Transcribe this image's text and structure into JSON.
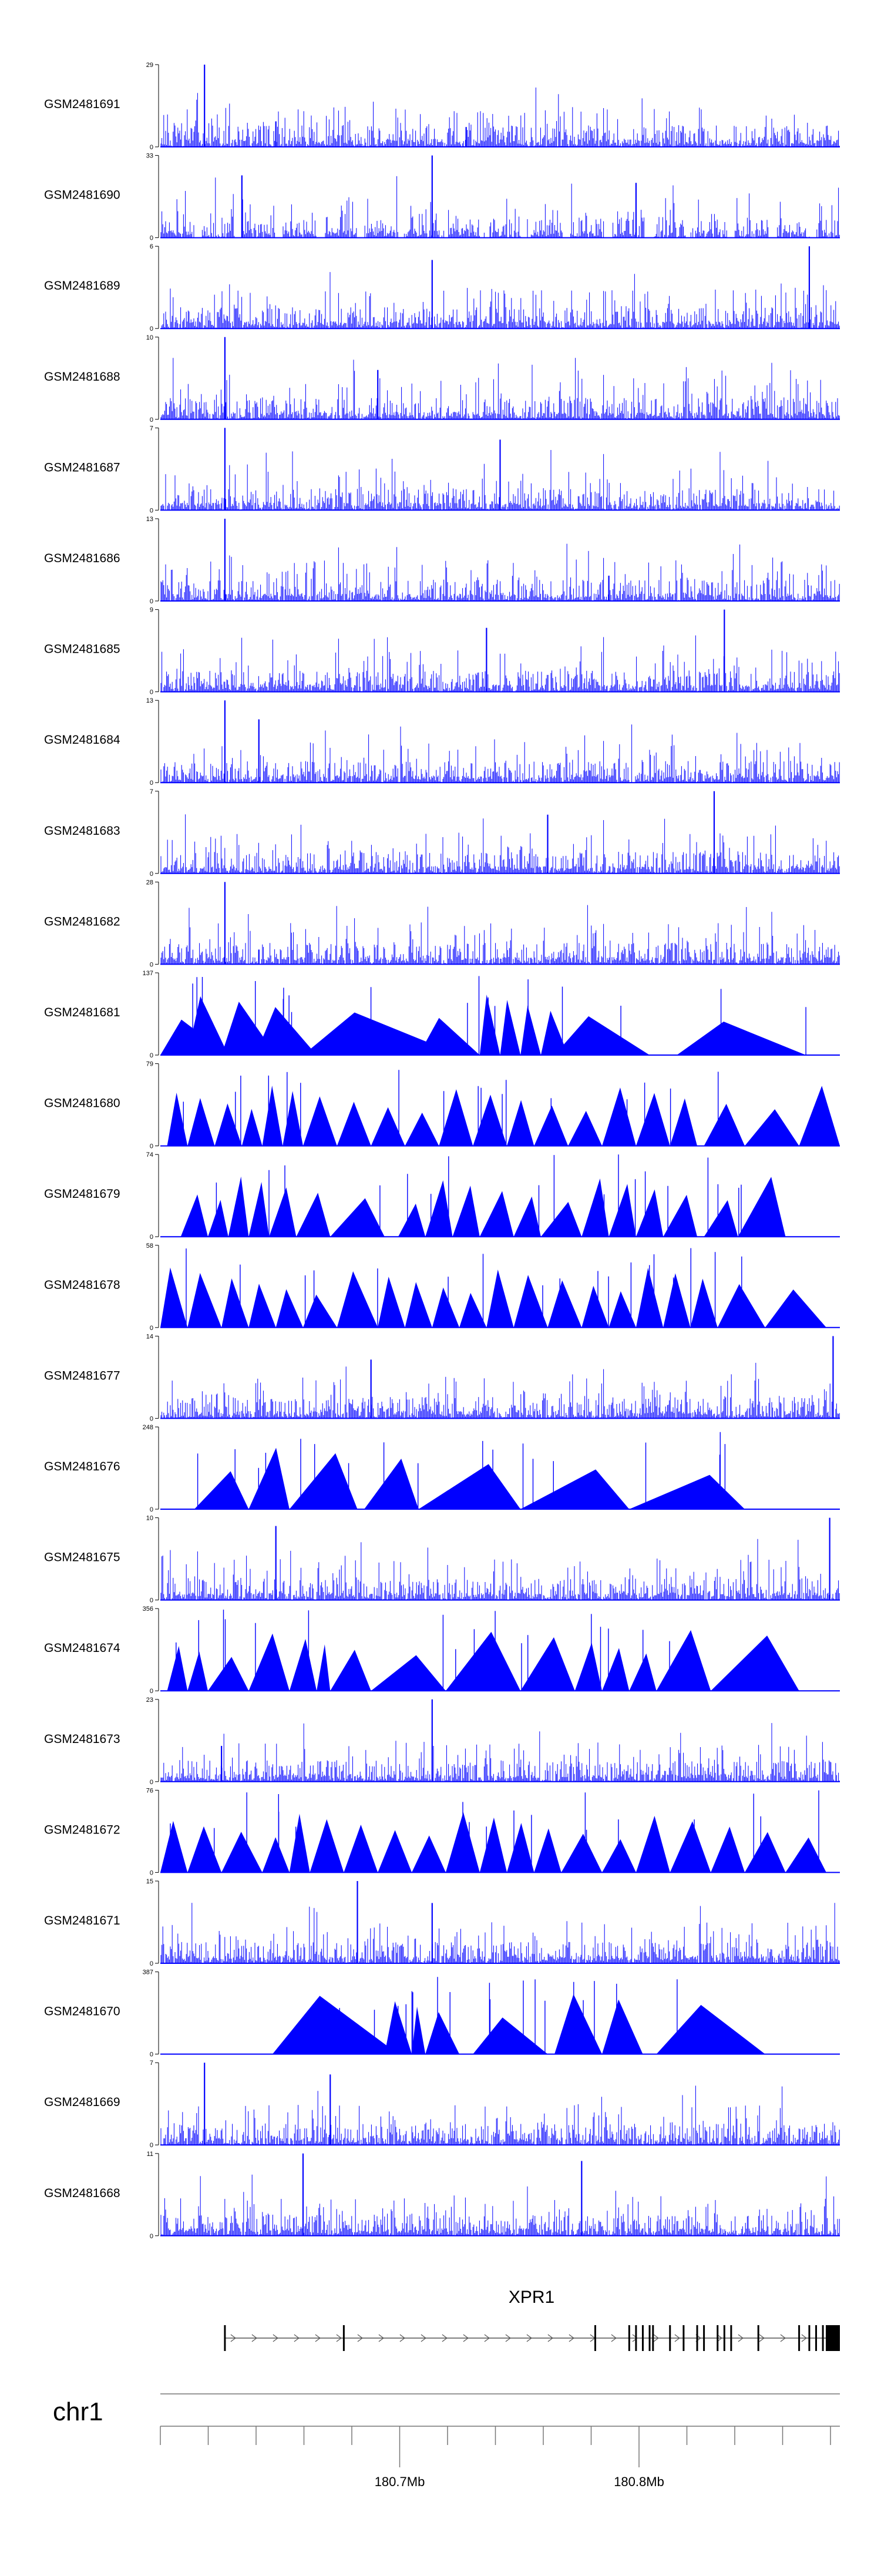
{
  "colors": {
    "signal": "#0000ff",
    "axis": "#000000",
    "gene": "#555555",
    "scale": "#777777"
  },
  "tracks": [
    {
      "label": "GSM2481691",
      "ymax": "29",
      "ymin": "0",
      "style": "spiky",
      "peaks": [
        [
          0.065,
          29
        ],
        [
          0.17,
          9
        ],
        [
          0.45,
          7
        ]
      ]
    },
    {
      "label": "GSM2481690",
      "ymax": "33",
      "ymin": "0",
      "style": "gapped",
      "peaks": [
        [
          0.4,
          33
        ],
        [
          0.12,
          25
        ],
        [
          0.7,
          22
        ]
      ]
    },
    {
      "label": "GSM2481689",
      "ymax": "6",
      "ymin": "0",
      "style": "spiky",
      "peaks": [
        [
          0.955,
          6
        ],
        [
          0.4,
          5
        ]
      ]
    },
    {
      "label": "GSM2481688",
      "ymax": "10",
      "ymin": "0",
      "style": "spiky",
      "peaks": [
        [
          0.095,
          10
        ],
        [
          0.32,
          6
        ]
      ]
    },
    {
      "label": "GSM2481687",
      "ymax": "7",
      "ymin": "0",
      "style": "spiky",
      "peaks": [
        [
          0.095,
          7
        ],
        [
          0.5,
          6
        ]
      ]
    },
    {
      "label": "GSM2481686",
      "ymax": "13",
      "ymin": "0",
      "style": "spiky",
      "peaks": [
        [
          0.095,
          13
        ],
        [
          0.66,
          4
        ]
      ]
    },
    {
      "label": "GSM2481685",
      "ymax": "9",
      "ymin": "0",
      "style": "spiky",
      "peaks": [
        [
          0.83,
          9
        ],
        [
          0.48,
          7
        ]
      ]
    },
    {
      "label": "GSM2481684",
      "ymax": "13",
      "ymin": "0",
      "style": "spiky",
      "peaks": [
        [
          0.095,
          13
        ],
        [
          0.145,
          10
        ]
      ]
    },
    {
      "label": "GSM2481683",
      "ymax": "7",
      "ymin": "0",
      "style": "spiky",
      "peaks": [
        [
          0.815,
          7
        ],
        [
          0.57,
          5
        ]
      ]
    },
    {
      "label": "GSM2481682",
      "ymax": "28",
      "ymin": "0",
      "style": "spiky",
      "peaks": [
        [
          0.095,
          28
        ],
        [
          0.145,
          5
        ]
      ]
    },
    {
      "label": "GSM2481681",
      "ymax": "137",
      "ymin": "0",
      "style": "triangle",
      "segments": [
        [
          0.0,
          0.1
        ],
        [
          0.04,
          0.1
        ],
        [
          0.09,
          0.17
        ],
        [
          0.14,
          0.23
        ],
        [
          0.21,
          0.44
        ],
        [
          0.38,
          0.47
        ],
        [
          0.47,
          0.5
        ],
        [
          0.5,
          0.53
        ],
        [
          0.53,
          0.56
        ],
        [
          0.56,
          0.6
        ],
        [
          0.58,
          0.72
        ],
        [
          0.76,
          0.95
        ]
      ]
    },
    {
      "label": "GSM2481680",
      "ymax": "79",
      "ymin": "0",
      "style": "triangle",
      "segments": [
        [
          0.01,
          0.04
        ],
        [
          0.04,
          0.08
        ],
        [
          0.08,
          0.12
        ],
        [
          0.12,
          0.15
        ],
        [
          0.15,
          0.18
        ],
        [
          0.18,
          0.21
        ],
        [
          0.21,
          0.26
        ],
        [
          0.26,
          0.31
        ],
        [
          0.31,
          0.36
        ],
        [
          0.36,
          0.41
        ],
        [
          0.41,
          0.46
        ],
        [
          0.46,
          0.51
        ],
        [
          0.51,
          0.55
        ],
        [
          0.55,
          0.6
        ],
        [
          0.6,
          0.65
        ],
        [
          0.65,
          0.7
        ],
        [
          0.7,
          0.75
        ],
        [
          0.75,
          0.79
        ],
        [
          0.8,
          0.86
        ],
        [
          0.86,
          0.94
        ],
        [
          0.94,
          1.0
        ]
      ]
    },
    {
      "label": "GSM2481679",
      "ymax": "74",
      "ymin": "0",
      "style": "triangle",
      "segments": [
        [
          0.03,
          0.07
        ],
        [
          0.07,
          0.1
        ],
        [
          0.1,
          0.13
        ],
        [
          0.13,
          0.16
        ],
        [
          0.16,
          0.2
        ],
        [
          0.2,
          0.25
        ],
        [
          0.25,
          0.33
        ],
        [
          0.35,
          0.39
        ],
        [
          0.39,
          0.43
        ],
        [
          0.43,
          0.47
        ],
        [
          0.47,
          0.52
        ],
        [
          0.52,
          0.56
        ],
        [
          0.56,
          0.62
        ],
        [
          0.62,
          0.66
        ],
        [
          0.66,
          0.7
        ],
        [
          0.7,
          0.74
        ],
        [
          0.74,
          0.79
        ],
        [
          0.8,
          0.85
        ],
        [
          0.85,
          0.92
        ]
      ]
    },
    {
      "label": "GSM2481678",
      "ymax": "58",
      "ymin": "0",
      "style": "triangle",
      "segments": [
        [
          0.0,
          0.04
        ],
        [
          0.04,
          0.09
        ],
        [
          0.09,
          0.13
        ],
        [
          0.13,
          0.17
        ],
        [
          0.17,
          0.21
        ],
        [
          0.21,
          0.26
        ],
        [
          0.26,
          0.32
        ],
        [
          0.32,
          0.36
        ],
        [
          0.36,
          0.4
        ],
        [
          0.4,
          0.44
        ],
        [
          0.44,
          0.48
        ],
        [
          0.48,
          0.52
        ],
        [
          0.52,
          0.57
        ],
        [
          0.57,
          0.62
        ],
        [
          0.62,
          0.66
        ],
        [
          0.66,
          0.7
        ],
        [
          0.7,
          0.74
        ],
        [
          0.74,
          0.78
        ],
        [
          0.78,
          0.82
        ],
        [
          0.82,
          0.89
        ],
        [
          0.89,
          0.98
        ]
      ]
    },
    {
      "label": "GSM2481677",
      "ymax": "14",
      "ymin": "0",
      "style": "spiky",
      "peaks": [
        [
          0.99,
          14
        ],
        [
          0.31,
          10
        ]
      ]
    },
    {
      "label": "GSM2481676",
      "ymax": "248",
      "ymin": "0",
      "style": "triangle",
      "segments": [
        [
          0.05,
          0.13
        ],
        [
          0.13,
          0.19
        ],
        [
          0.19,
          0.29
        ],
        [
          0.3,
          0.38
        ],
        [
          0.38,
          0.53
        ],
        [
          0.53,
          0.69
        ],
        [
          0.69,
          0.86
        ]
      ]
    },
    {
      "label": "GSM2481675",
      "ymax": "10",
      "ymin": "0",
      "style": "spiky",
      "peaks": [
        [
          0.985,
          10
        ],
        [
          0.17,
          9
        ]
      ]
    },
    {
      "label": "GSM2481674",
      "ymax": "356",
      "ymin": "0",
      "style": "triangle",
      "segments": [
        [
          0.01,
          0.04
        ],
        [
          0.04,
          0.07
        ],
        [
          0.07,
          0.13
        ],
        [
          0.13,
          0.19
        ],
        [
          0.19,
          0.23
        ],
        [
          0.23,
          0.25
        ],
        [
          0.25,
          0.31
        ],
        [
          0.31,
          0.42
        ],
        [
          0.42,
          0.53
        ],
        [
          0.53,
          0.61
        ],
        [
          0.61,
          0.65
        ],
        [
          0.65,
          0.69
        ],
        [
          0.69,
          0.73
        ],
        [
          0.73,
          0.81
        ],
        [
          0.81,
          0.94
        ]
      ]
    },
    {
      "label": "GSM2481673",
      "ymax": "23",
      "ymin": "0",
      "style": "spiky",
      "peaks": [
        [
          0.4,
          23
        ],
        [
          0.09,
          10
        ]
      ]
    },
    {
      "label": "GSM2481672",
      "ymax": "76",
      "ymin": "0",
      "style": "triangle",
      "segments": [
        [
          0.0,
          0.04
        ],
        [
          0.04,
          0.09
        ],
        [
          0.09,
          0.15
        ],
        [
          0.15,
          0.19
        ],
        [
          0.19,
          0.22
        ],
        [
          0.22,
          0.27
        ],
        [
          0.27,
          0.32
        ],
        [
          0.32,
          0.37
        ],
        [
          0.37,
          0.42
        ],
        [
          0.42,
          0.47
        ],
        [
          0.47,
          0.51
        ],
        [
          0.51,
          0.55
        ],
        [
          0.55,
          0.59
        ],
        [
          0.59,
          0.65
        ],
        [
          0.65,
          0.7
        ],
        [
          0.7,
          0.75
        ],
        [
          0.75,
          0.81
        ],
        [
          0.81,
          0.86
        ],
        [
          0.86,
          0.92
        ],
        [
          0.92,
          0.98
        ]
      ]
    },
    {
      "label": "GSM2481671",
      "ymax": "15",
      "ymin": "0",
      "style": "spiky",
      "peaks": [
        [
          0.29,
          15
        ],
        [
          0.4,
          11
        ]
      ]
    },
    {
      "label": "GSM2481670",
      "ymax": "387",
      "ymin": "0",
      "style": "triangle",
      "segments": [
        [
          0.165,
          0.35
        ],
        [
          0.33,
          0.37
        ],
        [
          0.37,
          0.39
        ],
        [
          0.39,
          0.44
        ],
        [
          0.46,
          0.57
        ],
        [
          0.58,
          0.65
        ],
        [
          0.65,
          0.71
        ],
        [
          0.73,
          0.89
        ]
      ]
    },
    {
      "label": "GSM2481669",
      "ymax": "7",
      "ymin": "0",
      "style": "spiky",
      "peaks": [
        [
          0.065,
          7
        ],
        [
          0.25,
          6
        ]
      ]
    },
    {
      "label": "GSM2481668",
      "ymax": "11",
      "ymin": "0",
      "style": "spiky",
      "peaks": [
        [
          0.21,
          11
        ],
        [
          0.62,
          10
        ]
      ]
    }
  ],
  "gene": {
    "name": "XPR1"
  },
  "chromosome": {
    "label": "chr1"
  },
  "scale": {
    "tick_labels": [
      "180.7Mb",
      "180.8Mb"
    ]
  }
}
